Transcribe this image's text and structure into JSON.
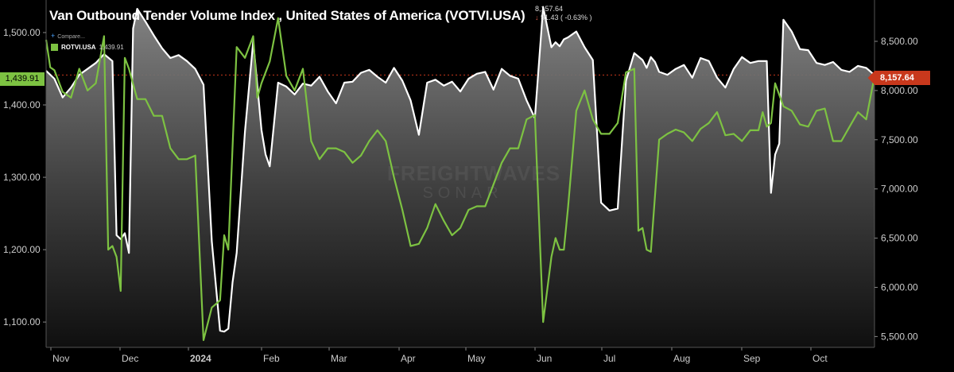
{
  "title": "Van Outbound Tender Volume Index , United States of America (VOTVI.USA)",
  "quote": {
    "last": "8,157.64",
    "change": "51.43 ( -0.63% )",
    "change_color": "#e05a4a"
  },
  "compare_label": "Compare...",
  "legend": {
    "symbol": "ROTVI.USA",
    "value": "1,439.91"
  },
  "badges": {
    "left": "1,439.91",
    "right": "8,157.64"
  },
  "watermark": {
    "line1": "FREIGHTWAVES",
    "line2": "SONAR"
  },
  "colors": {
    "votvi_line": "#ffffff",
    "rotvi_line": "#7dc242",
    "badge_left": "#7dc242",
    "badge_right": "#c8381c",
    "background": "#000000"
  },
  "chart_data": {
    "type": "line",
    "title": "Van Outbound Tender Volume Index , United States of America (VOTVI.USA)",
    "x_ticks": [
      "Nov",
      "Dec",
      "2024",
      "Feb",
      "Mar",
      "Apr",
      "May",
      "Jun",
      "Jul",
      "Aug",
      "Sep",
      "Oct"
    ],
    "y_left": {
      "ylim": [
        1065,
        1545
      ],
      "ticks": [
        "1,100.00",
        "1,200.00",
        "1,300.00",
        "1,400.00",
        "1,500.00"
      ],
      "tick_values": [
        1100,
        1200,
        1300,
        1400,
        1500
      ]
    },
    "y_right": {
      "ylim": [
        5390,
        8920
      ],
      "ticks": [
        "5,500.00",
        "6,000.00",
        "6,500.00",
        "7,000.00",
        "7,500.00",
        "8,000.00",
        "8,500.00"
      ],
      "tick_values": [
        5500,
        6000,
        6500,
        7000,
        7500,
        8000,
        8500
      ]
    },
    "reference_line": {
      "axis": "right",
      "value": 8157.64
    },
    "series": [
      {
        "name": "VOTVI.USA",
        "axis": "right",
        "area": true,
        "x": [
          0,
          0.01,
          0.02,
          0.03,
          0.04,
          0.05,
          0.06,
          0.07,
          0.08,
          0.085,
          0.09,
          0.095,
          0.1,
          0.105,
          0.11,
          0.12,
          0.13,
          0.14,
          0.15,
          0.16,
          0.17,
          0.18,
          0.19,
          0.2,
          0.21,
          0.215,
          0.22,
          0.225,
          0.23,
          0.24,
          0.25,
          0.26,
          0.265,
          0.27,
          0.28,
          0.29,
          0.3,
          0.31,
          0.32,
          0.33,
          0.34,
          0.35,
          0.36,
          0.37,
          0.38,
          0.39,
          0.4,
          0.41,
          0.42,
          0.43,
          0.44,
          0.45,
          0.46,
          0.47,
          0.48,
          0.49,
          0.5,
          0.51,
          0.52,
          0.53,
          0.54,
          0.55,
          0.56,
          0.57,
          0.58,
          0.59,
          0.6,
          0.61,
          0.615,
          0.62,
          0.625,
          0.63,
          0.64,
          0.65,
          0.66,
          0.67,
          0.68,
          0.69,
          0.7,
          0.71,
          0.72,
          0.725,
          0.73,
          0.735,
          0.74,
          0.75,
          0.76,
          0.77,
          0.78,
          0.79,
          0.8,
          0.81,
          0.82,
          0.83,
          0.84,
          0.85,
          0.86,
          0.87,
          0.875,
          0.88,
          0.885,
          0.89,
          0.9,
          0.91,
          0.92,
          0.93,
          0.94,
          0.95,
          0.96,
          0.97,
          0.98,
          0.99,
          1.0
        ],
        "values": [
          8200,
          8120,
          7930,
          8030,
          8160,
          8220,
          8280,
          8370,
          8300,
          6530,
          6490,
          6550,
          6350,
          8630,
          8830,
          8700,
          8560,
          8430,
          8330,
          8360,
          8300,
          8220,
          8060,
          6470,
          5560,
          5550,
          5580,
          6050,
          6350,
          7580,
          8500,
          7600,
          7350,
          7230,
          8080,
          8040,
          7960,
          8070,
          8050,
          8140,
          7990,
          7870,
          8080,
          8090,
          8180,
          8210,
          8140,
          8080,
          8230,
          8100,
          7900,
          7550,
          8080,
          8110,
          8050,
          8090,
          7990,
          8120,
          8170,
          8190,
          8010,
          8220,
          8150,
          8120,
          7900,
          7720,
          8850,
          8440,
          8490,
          8450,
          8520,
          8540,
          8600,
          8440,
          8310,
          6860,
          6780,
          6800,
          8100,
          8380,
          8310,
          8230,
          8340,
          8290,
          8190,
          8160,
          8220,
          8260,
          8130,
          8330,
          8300,
          8130,
          8030,
          8220,
          8340,
          8280,
          8300,
          8300,
          6960,
          7350,
          7460,
          8720,
          8600,
          8420,
          8410,
          8280,
          8260,
          8290,
          8210,
          8190,
          8250,
          8230,
          8157.64
        ]
      },
      {
        "name": "ROTVI.USA",
        "axis": "left",
        "area": false,
        "x": [
          0,
          0.005,
          0.01,
          0.02,
          0.03,
          0.04,
          0.05,
          0.06,
          0.07,
          0.075,
          0.08,
          0.085,
          0.09,
          0.095,
          0.1,
          0.11,
          0.12,
          0.13,
          0.14,
          0.15,
          0.16,
          0.17,
          0.18,
          0.19,
          0.2,
          0.205,
          0.21,
          0.215,
          0.22,
          0.23,
          0.24,
          0.25,
          0.255,
          0.26,
          0.27,
          0.28,
          0.29,
          0.3,
          0.31,
          0.32,
          0.33,
          0.34,
          0.35,
          0.36,
          0.37,
          0.38,
          0.39,
          0.4,
          0.41,
          0.42,
          0.43,
          0.44,
          0.45,
          0.46,
          0.47,
          0.48,
          0.49,
          0.5,
          0.51,
          0.52,
          0.53,
          0.54,
          0.55,
          0.56,
          0.57,
          0.58,
          0.59,
          0.6,
          0.61,
          0.615,
          0.62,
          0.625,
          0.63,
          0.64,
          0.65,
          0.66,
          0.67,
          0.68,
          0.69,
          0.7,
          0.71,
          0.715,
          0.72,
          0.725,
          0.73,
          0.74,
          0.75,
          0.76,
          0.77,
          0.78,
          0.79,
          0.8,
          0.81,
          0.82,
          0.83,
          0.84,
          0.85,
          0.86,
          0.865,
          0.87,
          0.875,
          0.88,
          0.89,
          0.9,
          0.91,
          0.92,
          0.93,
          0.94,
          0.95,
          0.96,
          0.97,
          0.98,
          0.99,
          1.0
        ],
        "values": [
          1490,
          1452,
          1448,
          1418,
          1410,
          1450,
          1420,
          1430,
          1495,
          1200,
          1205,
          1190,
          1143,
          1465,
          1450,
          1408,
          1408,
          1385,
          1385,
          1340,
          1325,
          1325,
          1330,
          1075,
          1120,
          1125,
          1130,
          1220,
          1200,
          1480,
          1465,
          1495,
          1410,
          1430,
          1460,
          1520,
          1440,
          1420,
          1450,
          1350,
          1325,
          1340,
          1340,
          1335,
          1320,
          1330,
          1350,
          1365,
          1350,
          1300,
          1255,
          1205,
          1208,
          1230,
          1263,
          1240,
          1220,
          1230,
          1255,
          1260,
          1260,
          1290,
          1320,
          1340,
          1340,
          1380,
          1386,
          1100,
          1190,
          1216,
          1200,
          1200,
          1258,
          1392,
          1420,
          1380,
          1360,
          1360,
          1375,
          1445,
          1450,
          1226,
          1230,
          1200,
          1197,
          1352,
          1360,
          1366,
          1362,
          1350,
          1367,
          1375,
          1390,
          1358,
          1360,
          1350,
          1365,
          1365,
          1390,
          1370,
          1375,
          1430,
          1398,
          1392,
          1373,
          1370,
          1392,
          1395,
          1350,
          1350,
          1370,
          1390,
          1380,
          1439.91
        ]
      }
    ]
  }
}
